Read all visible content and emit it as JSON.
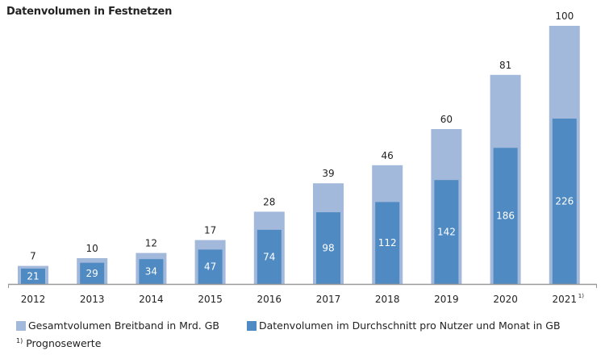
{
  "chart_data": {
    "type": "bar",
    "title": "Datenvolumen in Festnetzen",
    "categories": [
      "2012",
      "2013",
      "2014",
      "2015",
      "2016",
      "2017",
      "2018",
      "2019",
      "2020",
      "2021"
    ],
    "category_footnote_marks": {
      "2021": "1)"
    },
    "series": [
      {
        "name": "Gesamtvolumen Breitband in Mrd. GB",
        "values": [
          7,
          10,
          12,
          17,
          28,
          39,
          46,
          60,
          81,
          100
        ],
        "color": "#a3b9dc"
      },
      {
        "name": "Datenvolumen im Durchschnitt pro Nutzer und Monat in GB",
        "values": [
          21,
          29,
          34,
          47,
          74,
          98,
          112,
          142,
          186,
          226
        ],
        "color": "#4f8ac2"
      }
    ],
    "xlabel": "",
    "ylabel": "",
    "grid": false,
    "legend": "bottom",
    "footnote": {
      "mark": "1)",
      "text": "Prognosewerte"
    }
  }
}
